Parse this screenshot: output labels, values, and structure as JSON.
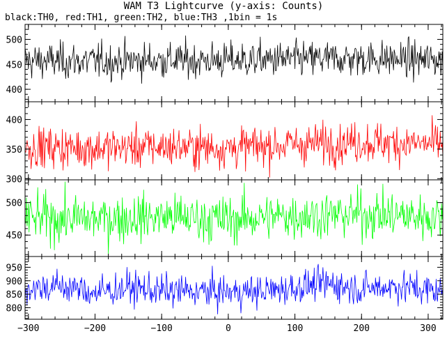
{
  "title": "WAM T3 Lightcurve (y-axis: Counts)",
  "subtitle": "black:TH0, red:TH1, green:TH2, blue:TH3 ,1bin = 1s",
  "chart_data": {
    "type": "line",
    "x": {
      "min": -305,
      "max": 322,
      "ticks": [
        -300,
        -200,
        -100,
        0,
        100,
        200,
        300
      ]
    },
    "panels": [
      {
        "name": "TH0",
        "color": "#000000",
        "ylim": [
          375,
          530
        ],
        "yticks": [
          400,
          450,
          500
        ],
        "mean": 458,
        "sd": 18,
        "trend": [
          [
            -305,
            457
          ],
          [
            -200,
            456
          ],
          [
            -100,
            458
          ],
          [
            0,
            458
          ],
          [
            100,
            460
          ],
          [
            200,
            462
          ],
          [
            322,
            458
          ]
        ]
      },
      {
        "name": "TH1",
        "color": "#ff0000",
        "ylim": [
          298,
          430
        ],
        "yticks": [
          300,
          350,
          400
        ],
        "mean": 355,
        "sd": 17,
        "trend": [
          [
            -305,
            353
          ],
          [
            -200,
            352
          ],
          [
            -100,
            354
          ],
          [
            0,
            352
          ],
          [
            100,
            358
          ],
          [
            200,
            362
          ],
          [
            322,
            358
          ]
        ]
      },
      {
        "name": "TH2",
        "color": "#00ff00",
        "ylim": [
          417,
          535
        ],
        "yticks": [
          450,
          500
        ],
        "mean": 477,
        "sd": 18,
        "trend": [
          [
            -305,
            476
          ],
          [
            -200,
            475
          ],
          [
            -100,
            478
          ],
          [
            0,
            474
          ],
          [
            100,
            480
          ],
          [
            200,
            482
          ],
          [
            322,
            478
          ]
        ]
      },
      {
        "name": "TH3",
        "color": "#0000ff",
        "ylim": [
          757,
          990
        ],
        "yticks": [
          800,
          850,
          900,
          950
        ],
        "mean": 868,
        "sd": 30,
        "trend": [
          [
            -305,
            870
          ],
          [
            -250,
            880
          ],
          [
            -200,
            855
          ],
          [
            -150,
            875
          ],
          [
            -100,
            862
          ],
          [
            0,
            858
          ],
          [
            50,
            860
          ],
          [
            150,
            890
          ],
          [
            200,
            870
          ],
          [
            250,
            880
          ],
          [
            322,
            860
          ]
        ]
      }
    ],
    "bin_seconds": 1,
    "grid": false
  }
}
